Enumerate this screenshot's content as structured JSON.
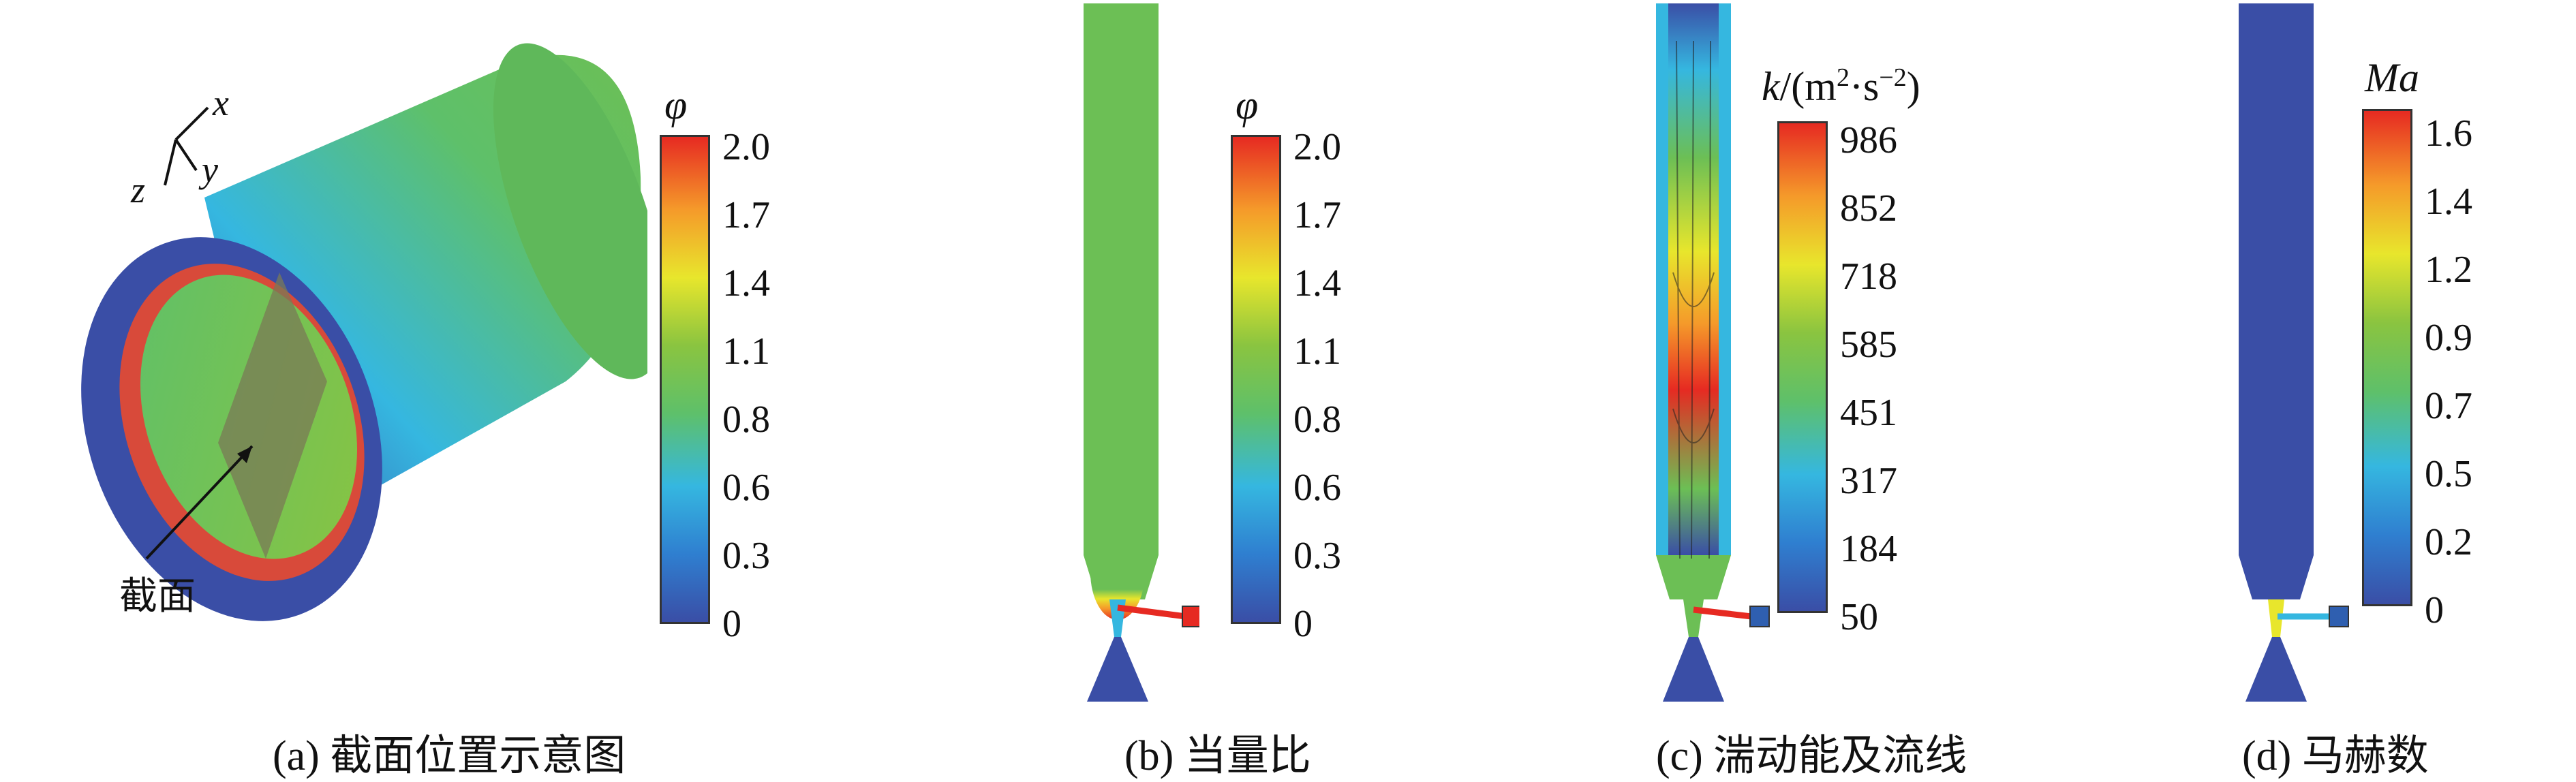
{
  "panels": [
    {
      "caption": "(a) 截面位置示意图",
      "colorbar_title": "φ",
      "ticks": [
        "2.0",
        "1.7",
        "1.4",
        "1.1",
        "0.8",
        "0.6",
        "0.3",
        "0"
      ],
      "axes": {
        "x": "x",
        "y": "y",
        "z": "z"
      },
      "section_label": "截面"
    },
    {
      "caption": "(b) 当量比",
      "colorbar_title": "φ",
      "ticks": [
        "2.0",
        "1.7",
        "1.4",
        "1.1",
        "0.8",
        "0.6",
        "0.3",
        "0"
      ]
    },
    {
      "caption": "(c) 湍动能及流线",
      "colorbar_title_symbol": "k",
      "colorbar_title_unit": "/(m",
      "colorbar_title_sup1": "2",
      "colorbar_title_mid": "·s",
      "colorbar_title_sup2": "−2",
      "colorbar_title_end": ")",
      "ticks": [
        "986",
        "852",
        "718",
        "585",
        "451",
        "317",
        "184",
        "50"
      ]
    },
    {
      "caption": "(d) 马赫数",
      "colorbar_title": "Ma",
      "ticks": [
        "1.6",
        "1.4",
        "1.2",
        "0.9",
        "0.7",
        "0.5",
        "0.2",
        "0"
      ]
    }
  ],
  "colors": {
    "low": "#3a4ea6",
    "mid_low": "#35b7e0",
    "mid": "#8ac440",
    "mid_high": "#e8e62c",
    "high": "#e62a22"
  }
}
